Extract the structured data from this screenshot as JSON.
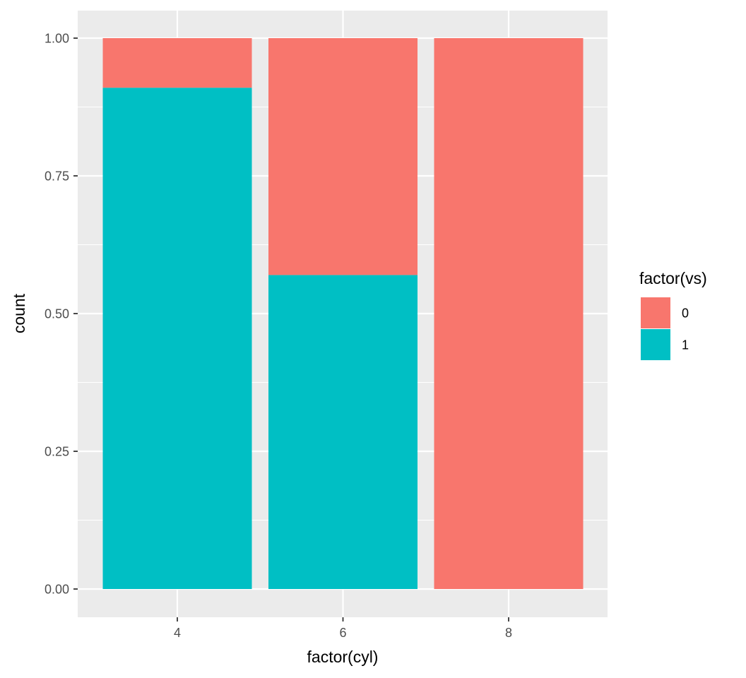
{
  "chart_data": {
    "type": "bar",
    "stacked": true,
    "position": "fill",
    "categories": [
      "4",
      "6",
      "8"
    ],
    "series": [
      {
        "name": "0",
        "color": "#F8766D",
        "values": [
          0.09,
          0.43,
          1.0
        ]
      },
      {
        "name": "1",
        "color": "#00BFC4",
        "values": [
          0.91,
          0.57,
          0.0
        ]
      }
    ],
    "xlabel": "factor(cyl)",
    "ylabel": "count",
    "ylim": [
      0,
      1
    ],
    "yticks": [
      0.0,
      0.25,
      0.5,
      0.75,
      1.0
    ],
    "ytick_labels": [
      "0.00",
      "0.25",
      "0.50",
      "0.75",
      "1.00"
    ],
    "legend": {
      "title": "factor(vs)",
      "position": "right"
    },
    "grid": true,
    "panel_background": "#EBEBEB",
    "grid_color": "#FFFFFF"
  }
}
